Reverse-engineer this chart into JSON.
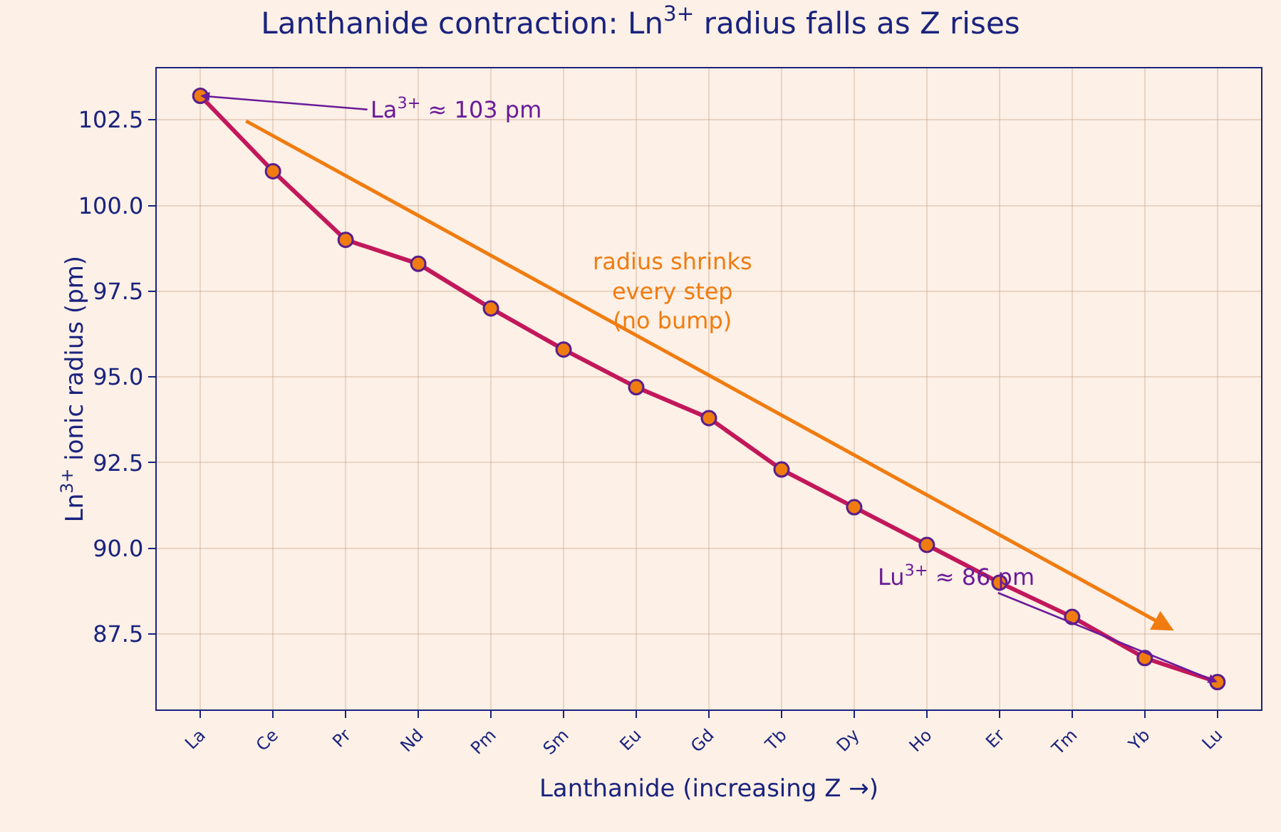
{
  "chart_data": {
    "type": "line",
    "title": "Lanthanide contraction: Ln$^{3+}$ radius falls as Z rises",
    "xlabel": "Lanthanide (increasing Z →)",
    "ylabel": "Ln$^{3+}$ ionic radius (pm)",
    "categories": [
      "La",
      "Ce",
      "Pr",
      "Nd",
      "Pm",
      "Sm",
      "Eu",
      "Gd",
      "Tb",
      "Dy",
      "Ho",
      "Er",
      "Tm",
      "Yb",
      "Lu"
    ],
    "series": [
      {
        "color": "#c2185b",
        "values": [
          103.2,
          101.0,
          99.0,
          98.3,
          97.0,
          95.8,
          94.7,
          93.8,
          92.3,
          91.2,
          90.1,
          89.0,
          88.0,
          86.8,
          86.1
        ]
      }
    ],
    "ylim": [
      85.3,
      104.0
    ],
    "yticks": [
      {
        "value": 87.5,
        "label": "87.5"
      },
      {
        "value": 90,
        "label": "90.0"
      },
      {
        "value": 92.5,
        "label": "92.5"
      },
      {
        "value": 95,
        "label": "95.0"
      },
      {
        "value": 97.5,
        "label": "97.5"
      },
      {
        "value": 100,
        "label": "100.0"
      },
      {
        "value": 102.5,
        "label": "102.5"
      }
    ],
    "grid": true,
    "marker": "circle",
    "line_style": "solid",
    "annotations": [
      {
        "text": "La$^{3+}$ ≈ 103 pm",
        "x": "La",
        "y": 103.2
      },
      {
        "text": "Lu$^{3+}$ ≈ 86 pm",
        "x": "Lu",
        "y": 86.1
      },
      "radius shrinks\nevery step\n(no bump)"
    ]
  }
}
